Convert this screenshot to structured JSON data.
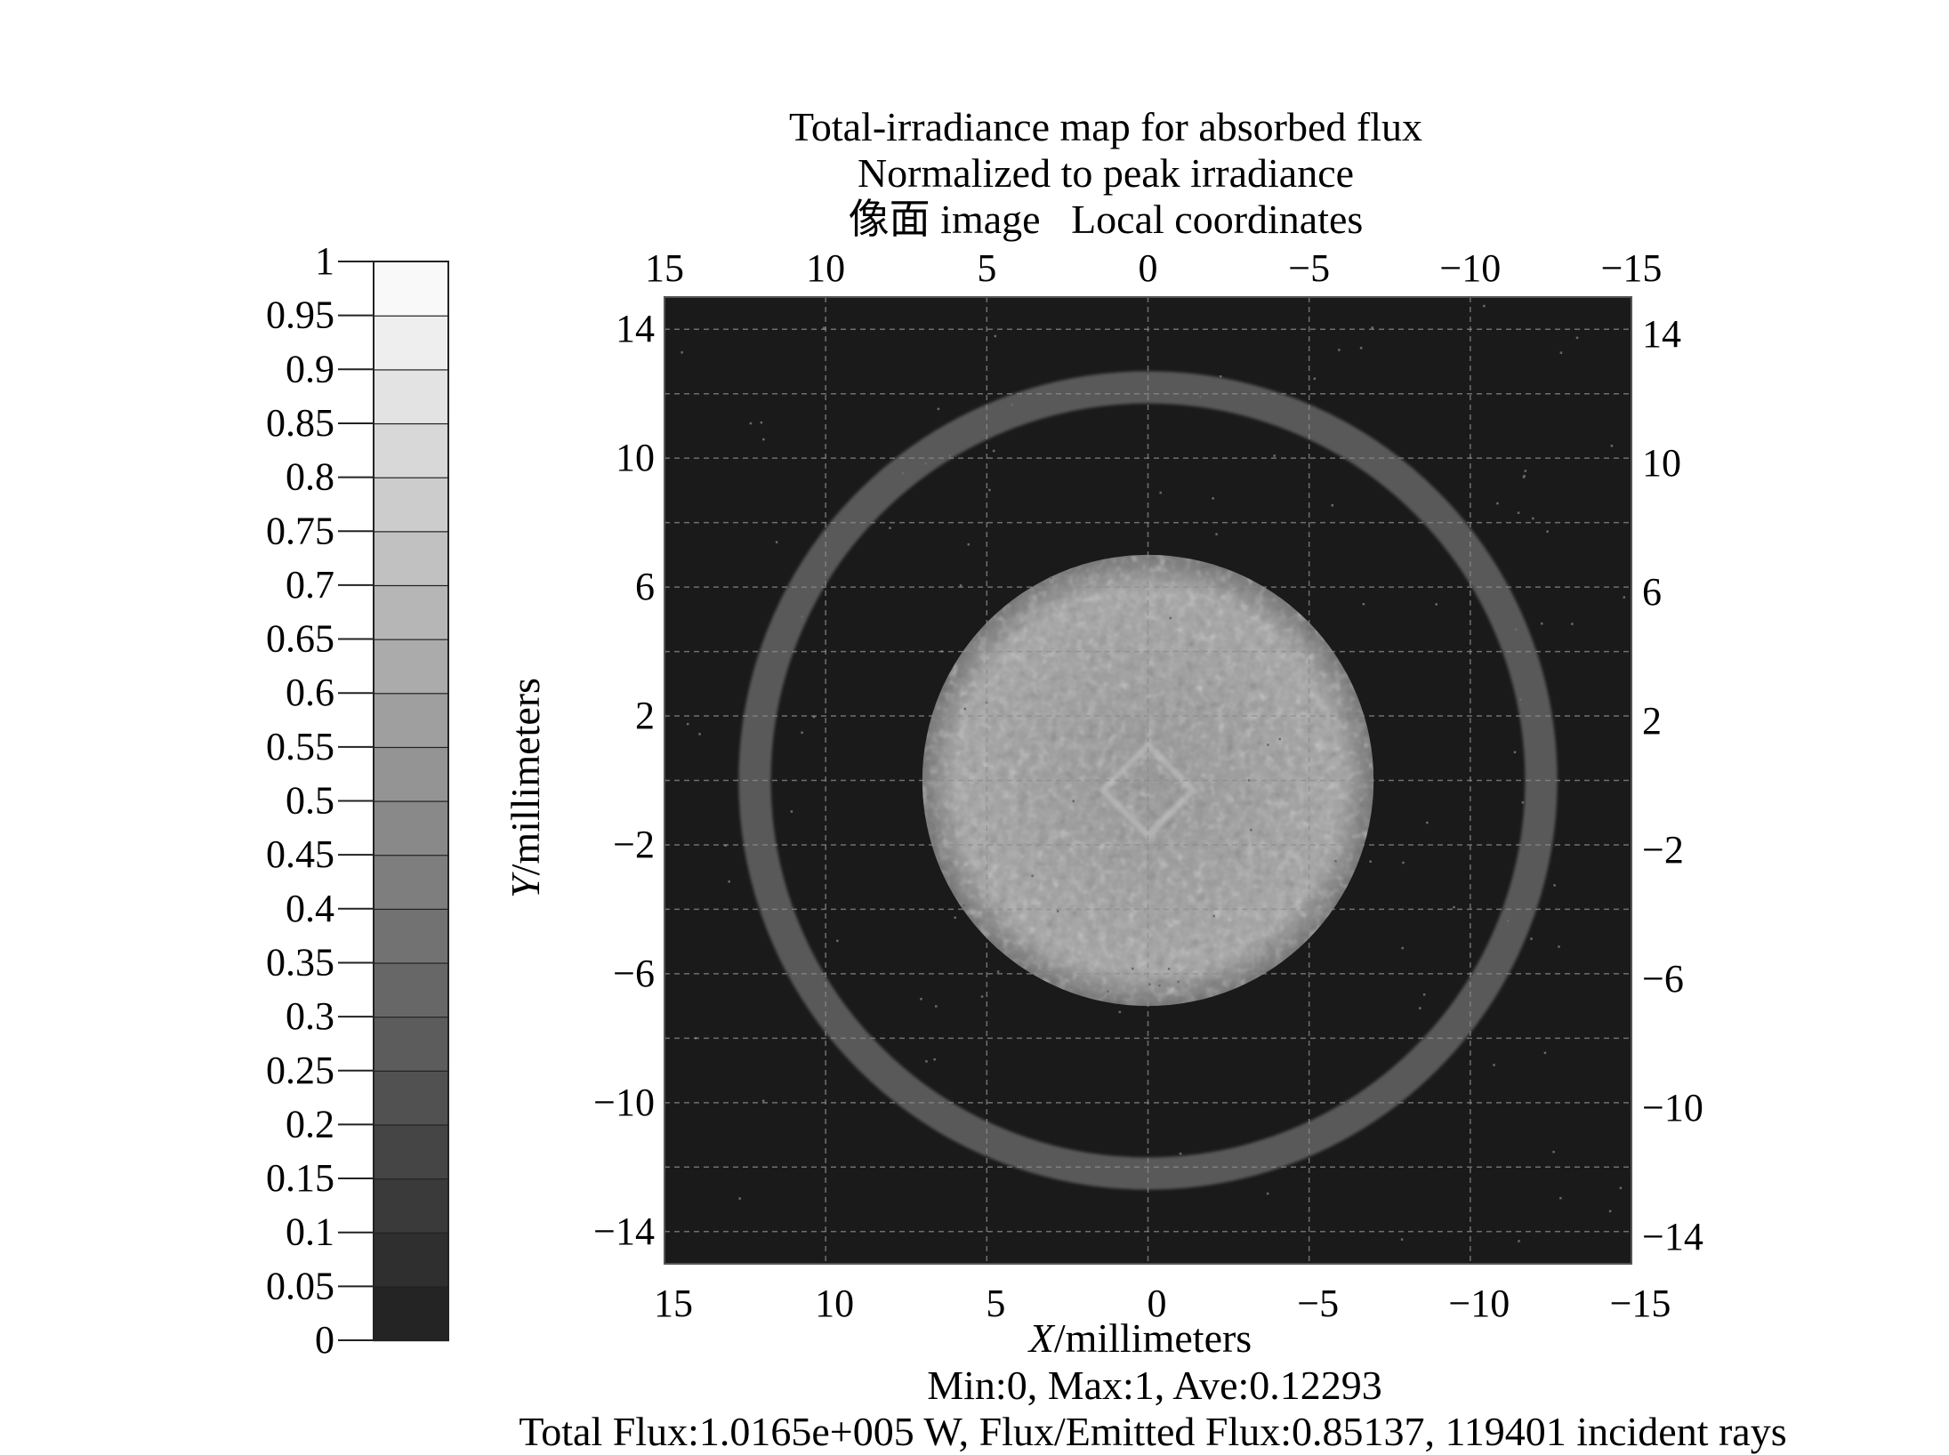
{
  "chart_data": {
    "type": "heatmap",
    "title_lines": [
      "Total-irradiance map for absorbed flux",
      "Normalized to peak irradiance",
      "像面 image   Local coordinates"
    ],
    "xlabel_italic": "X",
    "xlabel_rest": "/millimeters",
    "ylabel_italic": "Y",
    "ylabel_rest": "/millimeters",
    "xlim": [
      15,
      -15
    ],
    "ylim": [
      -15,
      15
    ],
    "x_ticks": [
      {
        "value": 15,
        "label": "15"
      },
      {
        "value": 10,
        "label": "10"
      },
      {
        "value": 5,
        "label": "5"
      },
      {
        "value": 0,
        "label": "0"
      },
      {
        "value": -5,
        "label": "−5"
      },
      {
        "value": -10,
        "label": "−10"
      },
      {
        "value": -15,
        "label": "−15"
      }
    ],
    "y_ticks": [
      {
        "value": 14,
        "label": "14"
      },
      {
        "value": 10,
        "label": "10"
      },
      {
        "value": 6,
        "label": "6"
      },
      {
        "value": 2,
        "label": "2"
      },
      {
        "value": -2,
        "label": "−2"
      },
      {
        "value": -6,
        "label": "−6"
      },
      {
        "value": -10,
        "label": "−10"
      },
      {
        "value": -14,
        "label": "−14"
      }
    ],
    "grid": true,
    "colorbar": {
      "min": 0,
      "max": 1,
      "ticks": [
        "0",
        "0.05",
        "0.1",
        "0.15",
        "0.2",
        "0.25",
        "0.3",
        "0.35",
        "0.4",
        "0.45",
        "0.5",
        "0.55",
        "0.6",
        "0.65",
        "0.7",
        "0.75",
        "0.8",
        "0.85",
        "0.9",
        "0.95",
        "1"
      ]
    },
    "features": {
      "background_level": 0.05,
      "central_spot": {
        "center_x_mm": 0,
        "center_y_mm": 0,
        "radius_mm": 7,
        "level": 0.6
      },
      "outer_ring": {
        "center_x_mm": 0,
        "center_y_mm": 0,
        "radius_mm": 12.2,
        "width_mm": 1.0,
        "level": 0.3
      }
    },
    "footer_lines": [
      "Min:0, Max:1, Ave:0.12293",
      "Total Flux:1.0165e+005 W, Flux/Emitted Flux:0.85137, 119401 incident rays"
    ]
  }
}
